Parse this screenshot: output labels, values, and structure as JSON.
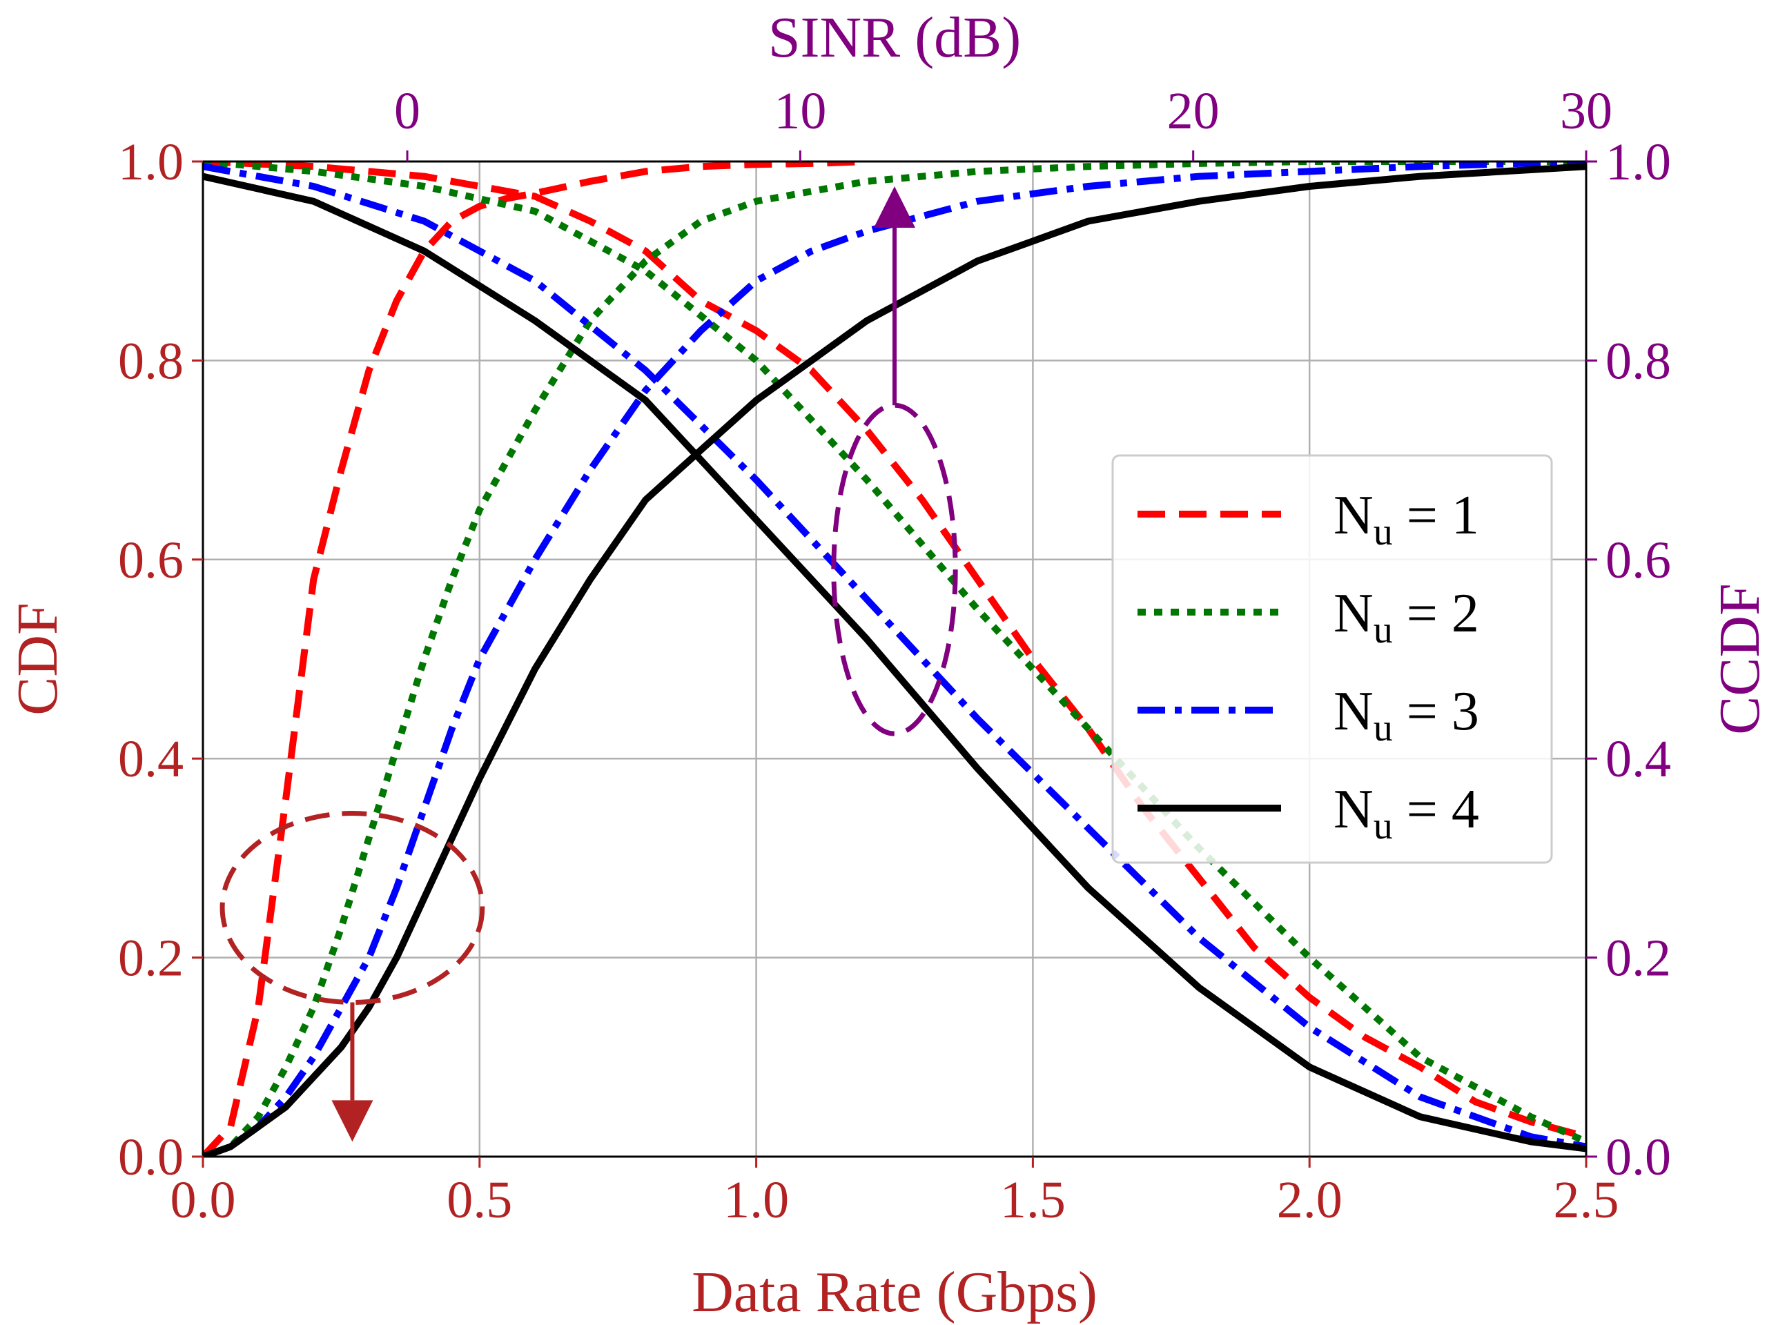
{
  "chart_data": {
    "type": "line",
    "title": "",
    "xlabel": "Data Rate (Gbps)",
    "ylabel": "CDF",
    "xlabel_top": "SINR (dB)",
    "ylabel_right": "CCDF",
    "xlim": [
      0.0,
      2.5
    ],
    "ylim": [
      0.0,
      1.0
    ],
    "xlim_top": [
      -5.2,
      30.0
    ],
    "ylim_right": [
      0.0,
      1.0
    ],
    "x_ticks": [
      "0.0",
      "0.5",
      "1.0",
      "1.5",
      "2.0",
      "2.5"
    ],
    "y_ticks": [
      "0.0",
      "0.2",
      "0.4",
      "0.6",
      "0.8",
      "1.0"
    ],
    "x_top_ticks": [
      "0",
      "10",
      "20",
      "30"
    ],
    "y_right_ticks": [
      "0.0",
      "0.2",
      "0.4",
      "0.6",
      "0.8",
      "1.0"
    ],
    "grid": true,
    "legend_position": "center-right",
    "series": [
      {
        "name": "N",
        "sub": "u",
        "suffix": " = 1",
        "color": "#ff0000",
        "dash": "dashed",
        "cdf_x": [
          0.0,
          0.05,
          0.1,
          0.15,
          0.2,
          0.25,
          0.3,
          0.35,
          0.4,
          0.45,
          0.5,
          0.55,
          0.6,
          0.7,
          0.8,
          0.9,
          1.0,
          1.1,
          1.2
        ],
        "cdf_y": [
          0.0,
          0.03,
          0.15,
          0.36,
          0.58,
          0.69,
          0.79,
          0.86,
          0.91,
          0.94,
          0.955,
          0.963,
          0.968,
          0.98,
          0.99,
          0.995,
          0.997,
          0.998,
          1.0
        ],
        "ccdf_x": [
          0.0,
          0.2,
          0.4,
          0.5,
          0.6,
          0.7,
          0.8,
          0.9,
          1.0,
          1.1,
          1.2,
          1.3,
          1.4,
          1.5,
          1.6,
          1.7,
          1.8,
          1.9,
          2.0,
          2.1,
          2.2,
          2.3,
          2.4,
          2.5
        ],
        "ccdf_y": [
          1.0,
          0.995,
          0.985,
          0.975,
          0.965,
          0.94,
          0.91,
          0.86,
          0.83,
          0.79,
          0.73,
          0.66,
          0.58,
          0.5,
          0.43,
          0.35,
          0.28,
          0.21,
          0.16,
          0.12,
          0.09,
          0.055,
          0.035,
          0.02
        ]
      },
      {
        "name": "N",
        "sub": "u",
        "suffix": " = 2",
        "color": "#007700",
        "dash": "dotted",
        "cdf_x": [
          0.0,
          0.05,
          0.1,
          0.15,
          0.2,
          0.25,
          0.3,
          0.35,
          0.4,
          0.45,
          0.5,
          0.6,
          0.7,
          0.8,
          0.9,
          1.0,
          1.2,
          1.4,
          1.6,
          1.8,
          2.0,
          2.2,
          2.5
        ],
        "cdf_y": [
          0.0,
          0.01,
          0.04,
          0.09,
          0.15,
          0.23,
          0.32,
          0.41,
          0.5,
          0.58,
          0.65,
          0.75,
          0.84,
          0.9,
          0.94,
          0.96,
          0.98,
          0.99,
          0.995,
          0.998,
          1.0,
          1.0,
          1.0
        ],
        "ccdf_x": [
          0.0,
          0.2,
          0.4,
          0.6,
          0.8,
          1.0,
          1.2,
          1.4,
          1.6,
          1.8,
          2.0,
          2.2,
          2.4,
          2.5
        ],
        "ccdf_y": [
          1.0,
          0.99,
          0.975,
          0.95,
          0.89,
          0.8,
          0.68,
          0.55,
          0.43,
          0.31,
          0.2,
          0.1,
          0.04,
          0.015
        ]
      },
      {
        "name": "N",
        "sub": "u",
        "suffix": " = 3",
        "color": "#0000ff",
        "dash": "dashdot",
        "cdf_x": [
          0.0,
          0.05,
          0.1,
          0.15,
          0.2,
          0.25,
          0.3,
          0.35,
          0.4,
          0.45,
          0.5,
          0.6,
          0.7,
          0.8,
          0.9,
          1.0,
          1.1,
          1.2,
          1.4,
          1.6,
          1.8,
          2.0,
          2.2,
          2.5
        ],
        "cdf_y": [
          0.0,
          0.01,
          0.03,
          0.06,
          0.1,
          0.15,
          0.2,
          0.27,
          0.35,
          0.43,
          0.5,
          0.6,
          0.69,
          0.77,
          0.83,
          0.88,
          0.91,
          0.93,
          0.96,
          0.975,
          0.985,
          0.99,
          0.995,
          1.0
        ],
        "ccdf_x": [
          0.0,
          0.2,
          0.4,
          0.6,
          0.8,
          1.0,
          1.2,
          1.4,
          1.6,
          1.8,
          2.0,
          2.2,
          2.4,
          2.5
        ],
        "ccdf_y": [
          0.995,
          0.975,
          0.94,
          0.88,
          0.79,
          0.68,
          0.56,
          0.44,
          0.33,
          0.22,
          0.13,
          0.06,
          0.02,
          0.01
        ]
      },
      {
        "name": "N",
        "sub": "u",
        "suffix": " = 4",
        "color": "#000000",
        "dash": "solid",
        "cdf_x": [
          0.0,
          0.05,
          0.1,
          0.15,
          0.2,
          0.25,
          0.3,
          0.35,
          0.4,
          0.45,
          0.5,
          0.6,
          0.7,
          0.8,
          0.9,
          1.0,
          1.1,
          1.2,
          1.3,
          1.4,
          1.5,
          1.6,
          1.8,
          2.0,
          2.2,
          2.5
        ],
        "cdf_y": [
          0.0,
          0.01,
          0.03,
          0.05,
          0.08,
          0.11,
          0.15,
          0.2,
          0.26,
          0.32,
          0.38,
          0.49,
          0.58,
          0.66,
          0.71,
          0.76,
          0.8,
          0.84,
          0.87,
          0.9,
          0.92,
          0.94,
          0.96,
          0.975,
          0.985,
          0.995
        ],
        "ccdf_x": [
          0.0,
          0.2,
          0.4,
          0.6,
          0.8,
          1.0,
          1.2,
          1.4,
          1.6,
          1.8,
          2.0,
          2.2,
          2.4,
          2.5
        ],
        "ccdf_y": [
          0.985,
          0.96,
          0.91,
          0.84,
          0.76,
          0.64,
          0.52,
          0.39,
          0.27,
          0.17,
          0.09,
          0.04,
          0.015,
          0.008
        ]
      }
    ],
    "annotations": [
      {
        "type": "ellipse",
        "target": "CDF",
        "center_x": 0.27,
        "center_y": 0.25,
        "rx": 0.235,
        "ry": 0.095,
        "color": "#b22222",
        "arrow_from_y": 0.155,
        "arrow_to_y": 0.015
      },
      {
        "type": "ellipse",
        "target": "CCDF",
        "center_x": 1.25,
        "center_y": 0.59,
        "rx": 0.11,
        "ry": 0.165,
        "color": "#800080",
        "arrow_from_y": 0.755,
        "arrow_to_y": 0.975
      }
    ]
  }
}
